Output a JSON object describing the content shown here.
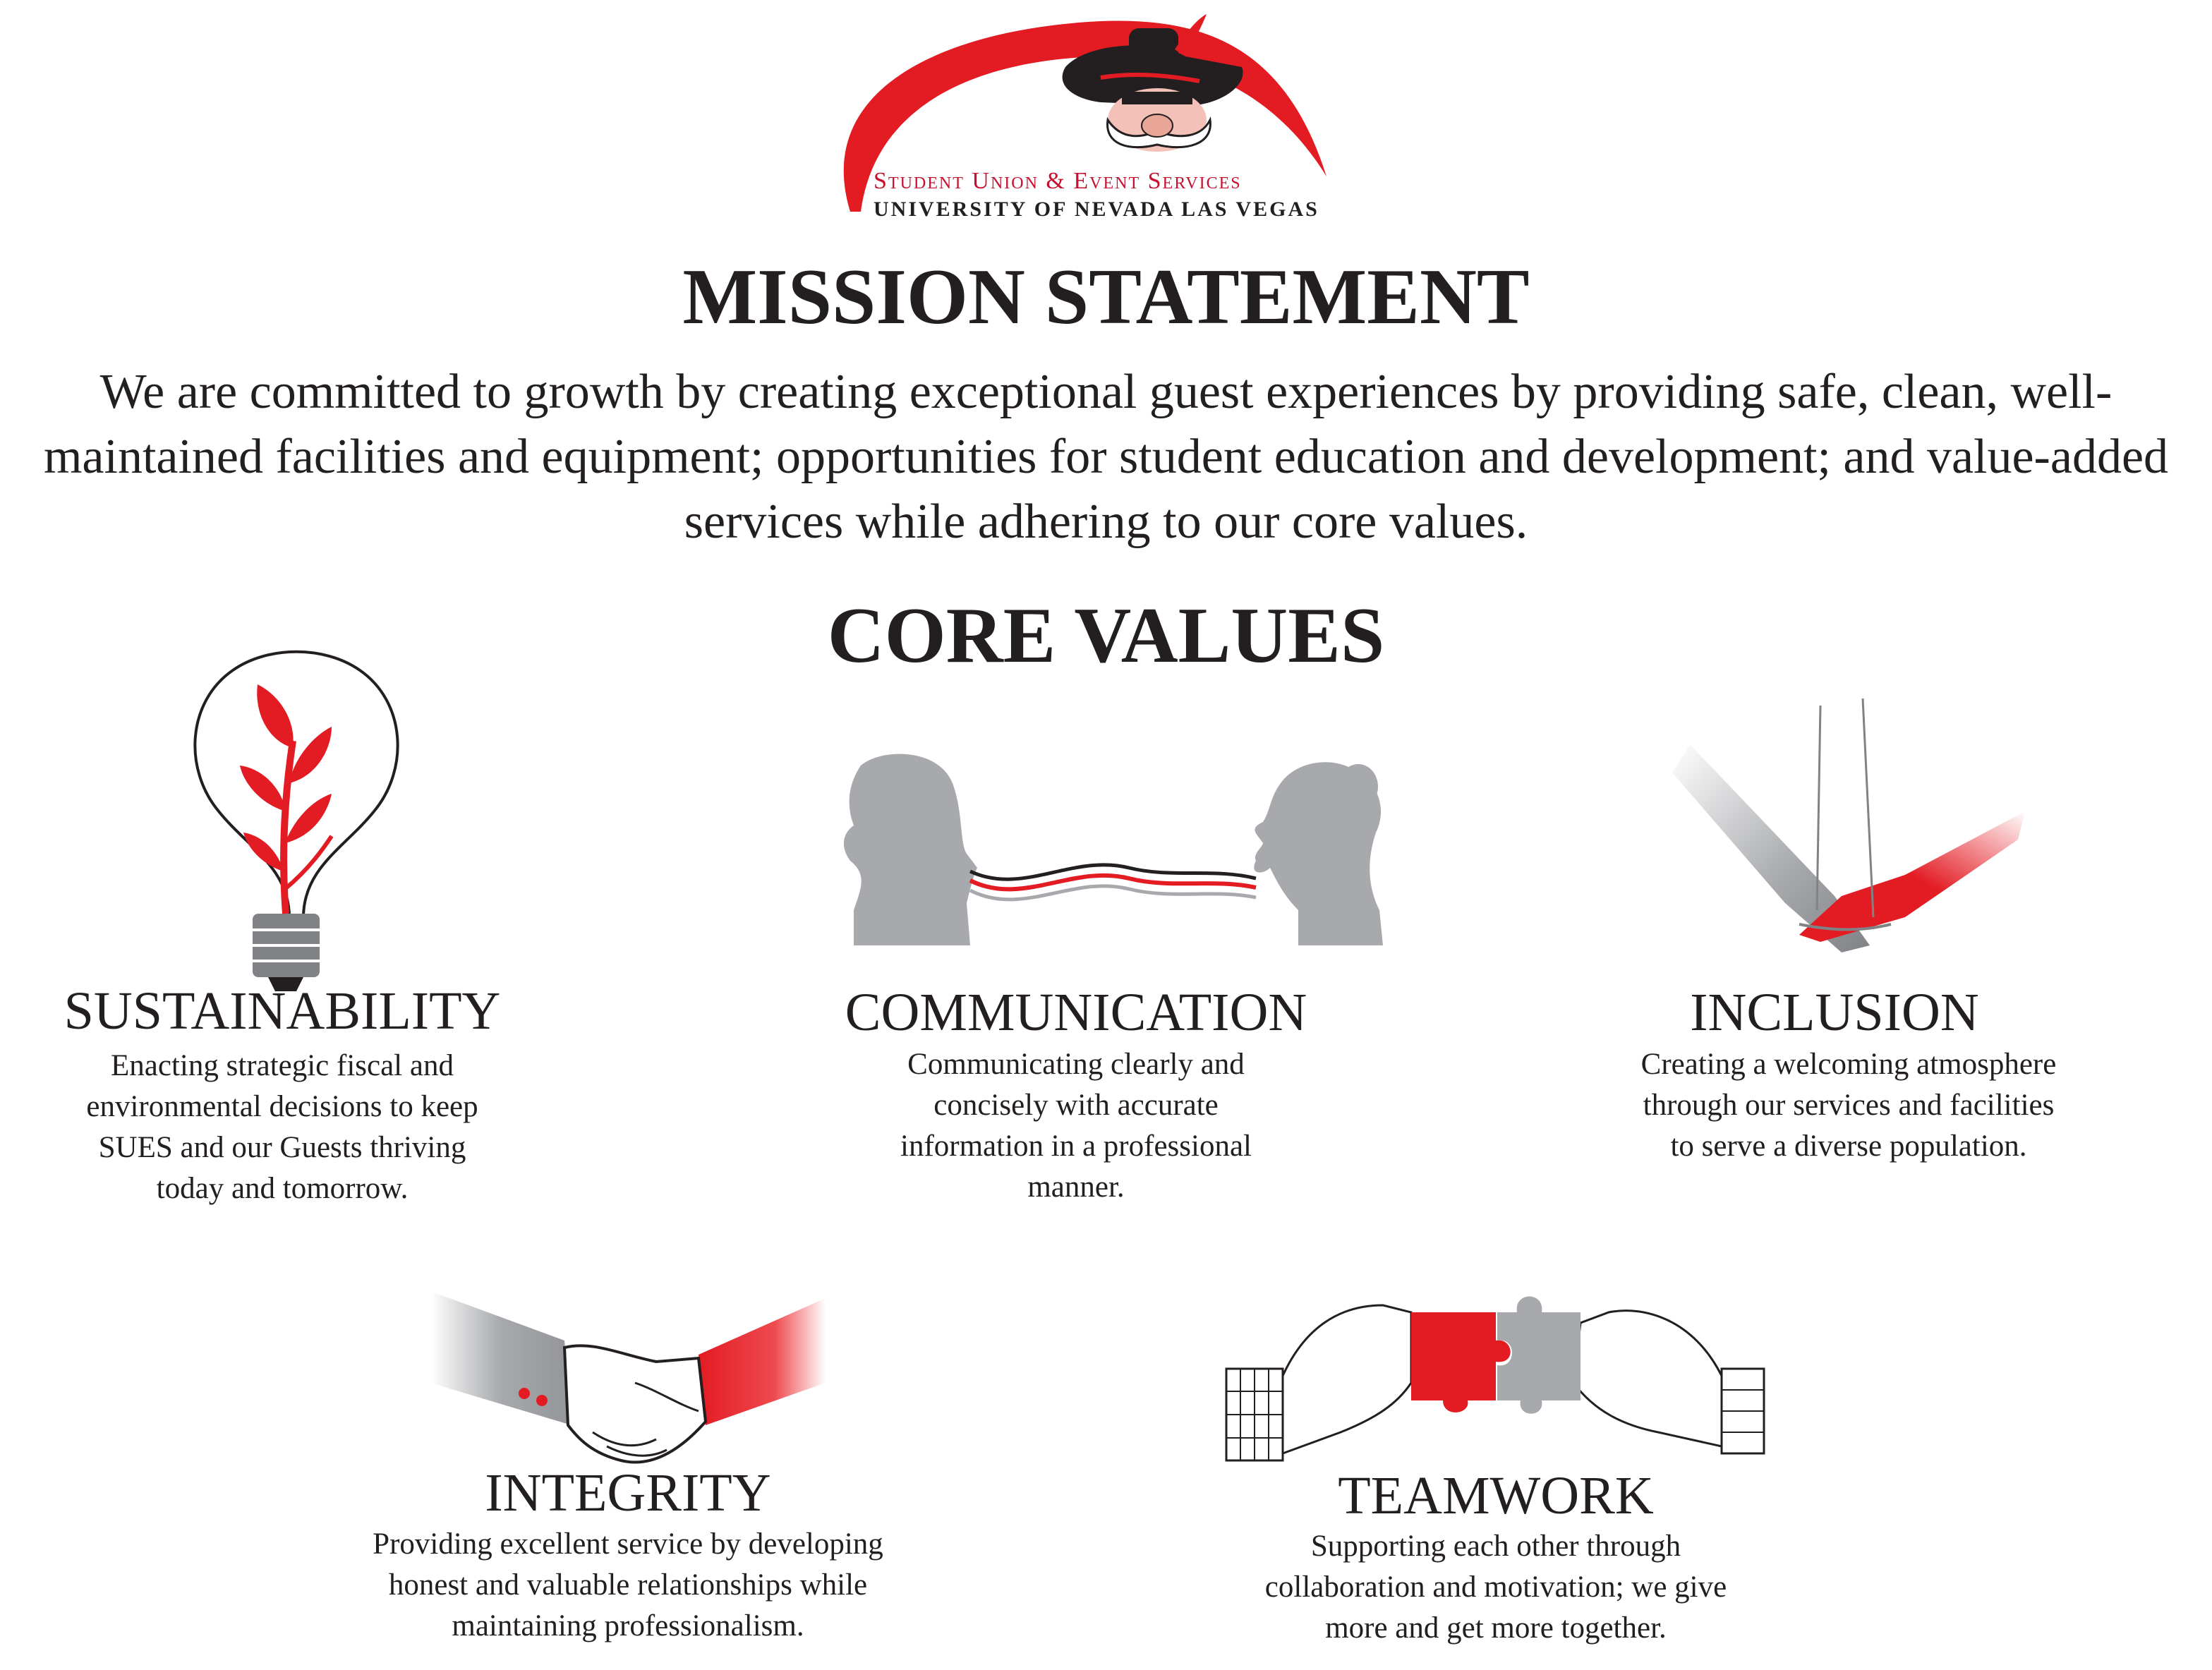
{
  "logo": {
    "line1": "Student Union & Event Services",
    "line2": "UNIVERSITY OF NEVADA LAS VEGAS",
    "accent_color": "#e31b23",
    "icon": "rebel-mascot-icon"
  },
  "mission": {
    "title": "MISSION STATEMENT",
    "text": "We are committed to growth by creating exceptional guest experiences by providing safe, clean, well-maintained facilities and equipment; opportunities for student education and development; and value-added services while adhering to our core values."
  },
  "core_values": {
    "title": "CORE VALUES",
    "items": [
      {
        "title": "SUSTAINABILITY",
        "text": "Enacting strategic fiscal and environmental decisions to keep SUES and our Guests thriving today and tomorrow.",
        "icon": "lightbulb-plant-icon"
      },
      {
        "title": "COMMUNICATION",
        "text": "Communicating clearly and concisely with accurate information in a professional manner.",
        "icon": "two-heads-talking-icon"
      },
      {
        "title": "INCLUSION",
        "text": "Creating a welcoming atmosphere through our services and facilities to serve a diverse population.",
        "icon": "holding-hands-icon"
      },
      {
        "title": "INTEGRITY",
        "text": "Providing excellent service by developing honest and valuable relationships while maintaining professionalism.",
        "icon": "handshake-icon"
      },
      {
        "title": "TEAMWORK",
        "text": "Supporting each other through collaboration and motivation; we give more and get more together.",
        "icon": "puzzle-pieces-icon"
      }
    ]
  },
  "colors": {
    "red": "#e31b23",
    "gray": "#a7a9ac",
    "text": "#231f20"
  }
}
